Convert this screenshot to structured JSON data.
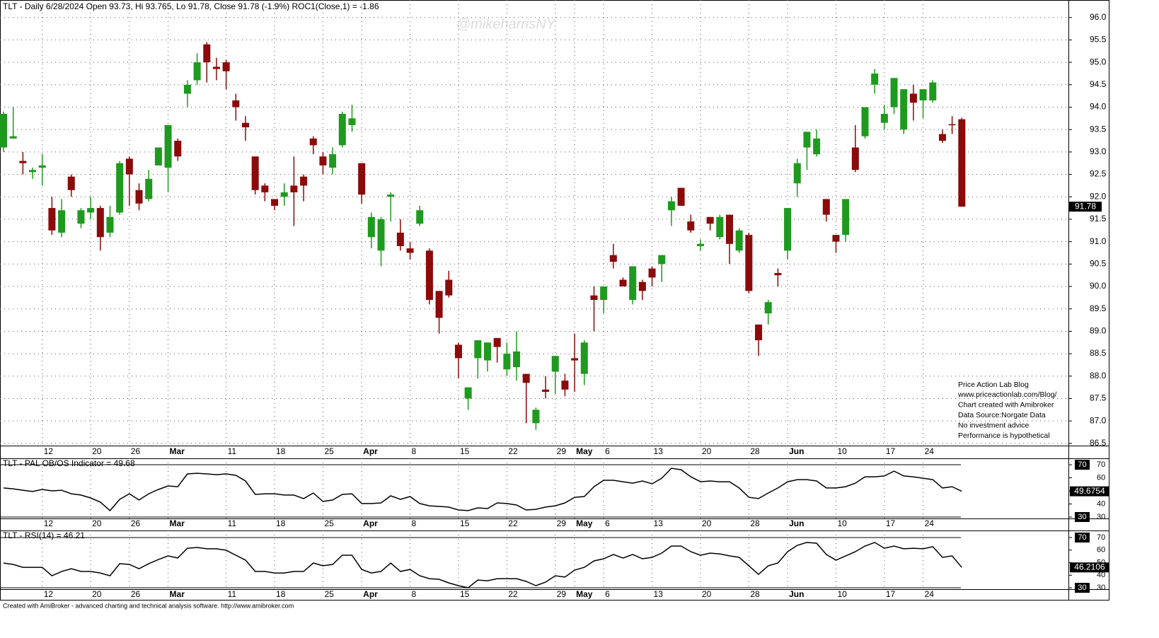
{
  "chart_data": [
    {
      "type": "candlestick",
      "title": "TLT - Daily 6/28/2024 Open 93.73, Hi 93.765, Lo 91.78, Close 91.78 (-1.9%) ROC1(Close,1) = -1.86",
      "watermark": "@mikeharrisNY",
      "notes": [
        "Price Action Lab Blog",
        "www.priceactionlab.com/Blog/",
        "Chart created with Amibroker",
        "Data Source:Norgate Data",
        "No investment advice",
        "Performance is hypothetical"
      ],
      "categories": [
        null,
        null,
        null,
        null,
        "12",
        null,
        null,
        null,
        null,
        "20",
        null,
        null,
        null,
        "26",
        null,
        null,
        null,
        "Mar",
        null,
        null,
        null,
        null,
        null,
        "11",
        null,
        null,
        null,
        null,
        "18",
        null,
        null,
        null,
        null,
        "25",
        null,
        null,
        null,
        "Apr",
        null,
        null,
        null,
        null,
        "8",
        null,
        null,
        null,
        null,
        "15",
        null,
        null,
        null,
        null,
        "22",
        null,
        null,
        null,
        null,
        "29",
        null,
        "May",
        null,
        null,
        "6",
        null,
        null,
        null,
        null,
        "13",
        null,
        null,
        null,
        null,
        "20",
        null,
        null,
        null,
        null,
        "28",
        null,
        null,
        null,
        "Jun",
        null,
        null,
        null,
        null,
        "10",
        null,
        null,
        null,
        null,
        "17",
        null,
        null,
        null,
        "24",
        null,
        null,
        null,
        null
      ],
      "open": [
        93.1,
        93.3,
        92.8,
        92.55,
        92.65,
        91.75,
        91.2,
        92.45,
        91.4,
        91.65,
        91.75,
        91.2,
        91.65,
        92.85,
        92.15,
        91.95,
        92.7,
        92.65,
        93.25,
        94.3,
        94.6,
        95.4,
        94.9,
        95.0,
        94.15,
        93.65,
        92.9,
        92.25,
        91.95,
        92.0,
        92.25,
        92.45,
        93.3,
        92.9,
        92.65,
        93.15,
        93.6,
        92.75,
        91.1,
        90.8,
        92.0,
        91.2,
        90.85,
        91.4,
        90.8,
        89.9,
        90.15,
        88.7,
        87.5,
        88.4,
        88.35,
        88.85,
        88.15,
        88.2,
        88.05,
        86.95,
        87.7,
        88.1,
        87.9,
        88.4,
        88.05,
        89.8,
        89.7,
        90.7,
        90.15,
        89.7,
        90.1,
        90.4,
        90.5,
        91.7,
        92.2,
        91.45,
        90.9,
        91.55,
        91.1,
        91.6,
        90.8,
        91.15,
        89.15,
        89.4,
        90.3,
        90.8,
        92.3,
        93.1,
        92.95,
        91.95,
        91.15,
        91.15,
        93.1,
        93.35,
        94.5,
        93.65,
        94.0,
        93.5,
        94.3,
        94.15,
        94.15,
        93.4,
        93.62,
        93.73
      ],
      "high": [
        93.9,
        94.0,
        93.0,
        92.65,
        92.95,
        92.0,
        91.95,
        92.5,
        91.75,
        92.0,
        91.8,
        91.8,
        92.8,
        92.9,
        92.3,
        92.6,
        93.1,
        93.6,
        93.3,
        94.6,
        95.2,
        95.45,
        95.1,
        95.05,
        94.3,
        93.8,
        92.9,
        92.3,
        91.95,
        92.3,
        92.9,
        92.5,
        93.35,
        93.0,
        93.1,
        93.9,
        94.05,
        92.75,
        91.65,
        91.55,
        92.1,
        91.5,
        91.0,
        91.8,
        90.85,
        89.9,
        90.35,
        88.75,
        87.75,
        88.8,
        88.75,
        88.85,
        88.75,
        89.0,
        88.05,
        87.3,
        88.0,
        88.45,
        88.05,
        88.95,
        88.8,
        90.0,
        90.0,
        90.95,
        90.2,
        90.45,
        90.15,
        90.45,
        90.7,
        92.0,
        92.2,
        91.6,
        91.05,
        91.55,
        91.6,
        91.6,
        91.3,
        91.2,
        89.15,
        89.7,
        90.4,
        91.75,
        92.85,
        93.45,
        93.5,
        91.95,
        91.15,
        91.95,
        93.6,
        94.0,
        94.85,
        94.05,
        94.65,
        94.4,
        94.5,
        94.4,
        94.6,
        93.5,
        93.8,
        93.765
      ],
      "low": [
        93.0,
        93.3,
        92.5,
        92.4,
        92.25,
        91.15,
        91.1,
        92.0,
        91.3,
        91.5,
        90.8,
        91.1,
        91.6,
        91.8,
        91.7,
        91.9,
        92.7,
        92.1,
        92.8,
        94.0,
        94.5,
        94.55,
        94.6,
        94.4,
        93.7,
        93.25,
        92.05,
        91.9,
        91.7,
        91.8,
        91.35,
        91.9,
        92.95,
        92.5,
        92.5,
        93.1,
        93.45,
        91.85,
        90.85,
        90.45,
        91.45,
        90.8,
        90.6,
        91.35,
        89.6,
        88.95,
        89.75,
        87.95,
        87.25,
        87.95,
        88.1,
        88.3,
        88.0,
        87.9,
        86.95,
        86.8,
        87.5,
        87.6,
        87.55,
        87.65,
        87.8,
        89.0,
        89.4,
        90.4,
        90.0,
        89.6,
        89.7,
        90.0,
        90.1,
        91.35,
        91.8,
        91.2,
        90.8,
        91.25,
        91.05,
        90.5,
        90.75,
        89.85,
        88.45,
        89.15,
        90.0,
        90.6,
        92.0,
        92.6,
        92.9,
        91.45,
        90.75,
        91.0,
        92.55,
        93.3,
        94.3,
        93.5,
        93.85,
        93.4,
        93.7,
        93.75,
        94.1,
        93.2,
        93.4,
        91.78
      ],
      "close": [
        93.85,
        93.35,
        92.75,
        92.6,
        92.7,
        91.25,
        91.7,
        92.15,
        91.7,
        91.75,
        91.1,
        91.55,
        92.75,
        92.5,
        91.85,
        92.4,
        93.1,
        93.6,
        92.9,
        94.5,
        95.0,
        95.0,
        94.85,
        94.8,
        94.0,
        93.55,
        92.15,
        92.1,
        91.8,
        92.1,
        92.1,
        92.25,
        93.15,
        92.7,
        92.95,
        93.85,
        93.75,
        92.05,
        91.55,
        91.5,
        92.05,
        90.9,
        90.75,
        91.7,
        89.7,
        89.3,
        89.8,
        88.4,
        87.75,
        88.8,
        88.75,
        88.65,
        88.5,
        88.55,
        87.85,
        87.25,
        87.65,
        88.45,
        87.7,
        88.35,
        88.75,
        89.7,
        90.0,
        90.55,
        90.0,
        90.45,
        89.9,
        90.2,
        90.7,
        91.9,
        91.8,
        91.25,
        90.95,
        91.4,
        91.55,
        90.95,
        91.25,
        89.9,
        88.8,
        89.65,
        90.25,
        91.75,
        92.75,
        93.45,
        93.3,
        91.6,
        91.0,
        91.95,
        92.6,
        94.0,
        94.75,
        93.85,
        94.65,
        94.4,
        94.1,
        94.4,
        94.55,
        93.25,
        93.6,
        91.78
      ],
      "colors": {
        "up": "#1e9a1e",
        "down": "#8b0a0a"
      },
      "ylim": [
        86.45,
        96.39
      ],
      "yticks": [
        86.5,
        {
          "value": 87,
          "label": "87.0"
        },
        87.5,
        {
          "value": 88,
          "label": "88.0"
        },
        88.5,
        {
          "value": 89,
          "label": "89.0"
        },
        89.5,
        {
          "value": 90,
          "label": "90.0"
        },
        90.5,
        {
          "value": 91,
          "label": "91.0"
        },
        91.5,
        {
          "value": 92,
          "label": "92.0"
        },
        92.5,
        {
          "value": 93,
          "label": "93.0"
        },
        93.5,
        {
          "value": 94,
          "label": "94.0"
        },
        94.5,
        {
          "value": 95,
          "label": "95.0"
        },
        95.5,
        {
          "value": 96,
          "label": "96.0"
        }
      ],
      "grid": true
    },
    {
      "type": "line",
      "title": "TLT - PAL OB/OS Indicator = 49.68",
      "color": "#000000",
      "values": [
        52.2,
        51.6,
        50.5,
        49.5,
        51.1,
        50,
        50.5,
        47.8,
        46.8,
        44.6,
        41.4,
        34.9,
        43.5,
        47.8,
        43,
        47.8,
        51.1,
        53.8,
        53.2,
        63,
        63.5,
        63,
        62.4,
        63,
        61.9,
        57.6,
        47.3,
        47.8,
        47.8,
        46.8,
        46.8,
        44.1,
        48.4,
        41.9,
        43,
        47.3,
        47.8,
        40.3,
        40.3,
        40.8,
        46.2,
        43.5,
        45.7,
        40.3,
        38.6,
        38.1,
        37.6,
        35.4,
        34.9,
        37,
        36.5,
        40.8,
        40.3,
        39.2,
        35.4,
        35.9,
        37.6,
        38.6,
        40.8,
        45.1,
        45.7,
        53.2,
        58.1,
        58.1,
        57,
        55.9,
        57.6,
        55.4,
        59.7,
        67.3,
        66.2,
        60.8,
        57,
        57.6,
        57,
        57,
        52.2,
        45.1,
        44.1,
        48.4,
        52.2,
        57,
        58.6,
        58.6,
        57.6,
        52.2,
        52.2,
        53.2,
        55.9,
        60.8,
        60.8,
        61.4,
        65.1,
        61.4,
        60.8,
        59.7,
        58.6,
        52.2,
        53.2,
        49.68
      ],
      "levels": [
        70,
        30
      ],
      "last_value": 49.6754,
      "ylim": [
        28.9,
        74.9
      ],
      "yticks": [
        30,
        40,
        50,
        60,
        70
      ]
    },
    {
      "type": "line",
      "title": "TLT - RSI(14) = 46.21",
      "color": "#000000",
      "values": [
        49.7,
        48.6,
        46.3,
        46.3,
        46.3,
        39.6,
        43,
        45.2,
        43,
        43,
        41.8,
        39.6,
        49.2,
        48.6,
        45.2,
        49.2,
        52.5,
        55.4,
        53.7,
        61.5,
        62.1,
        61,
        61,
        59.9,
        55.9,
        52,
        43,
        43,
        41.8,
        41.8,
        43,
        43,
        49.7,
        47.5,
        48.6,
        55.9,
        55.9,
        44.6,
        41.8,
        43,
        49.7,
        43,
        44.6,
        39.6,
        37.3,
        36.8,
        33.9,
        31.7,
        30,
        36.2,
        35.6,
        37.3,
        37.3,
        37.3,
        35.1,
        31.7,
        34.5,
        39.6,
        38.5,
        44.1,
        46.3,
        51.4,
        53.1,
        56.5,
        53.7,
        56.5,
        53.1,
        54.2,
        57.6,
        63.2,
        63.2,
        58.7,
        55.9,
        57.6,
        57,
        55.4,
        54.2,
        47.5,
        40.7,
        47.5,
        49.7,
        58.7,
        63.8,
        66.1,
        65.5,
        56.5,
        52,
        55.4,
        58.7,
        63.2,
        66.1,
        61.5,
        63.2,
        61,
        61.5,
        61,
        62.7,
        54.2,
        55.4,
        46.21
      ],
      "levels": [
        70,
        30
      ],
      "last_value": 46.2106,
      "ylim": [
        28.9,
        75.6
      ],
      "yticks": [
        30,
        40,
        50,
        60,
        70
      ]
    }
  ],
  "footer": "Created with AmiBroker - advanced charting and technical analysis software. http://www.amibroker.com"
}
